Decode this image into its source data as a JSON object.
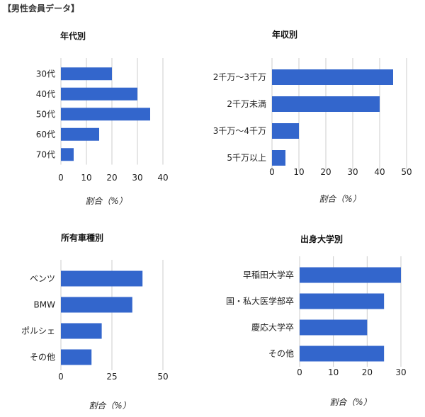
{
  "header": {
    "title": "【男性会員データ】"
  },
  "chart_data": [
    {
      "type": "bar",
      "title": "年代別",
      "categories": [
        "30代",
        "40代",
        "50代",
        "60代",
        "70代"
      ],
      "values": [
        20,
        30,
        35,
        15,
        5
      ],
      "xlabel": "割合（%）",
      "xlim": [
        0,
        40
      ],
      "ticks": [
        0,
        10,
        20,
        30,
        40
      ],
      "grid": true,
      "orientation": "horizontal"
    },
    {
      "type": "bar",
      "title": "年収別",
      "categories": [
        "2千万～3千万",
        "2千万未満",
        "3千万～4千万",
        "5千万以上"
      ],
      "values": [
        45,
        40,
        10,
        5
      ],
      "xlabel": "割合（%）",
      "xlim": [
        0,
        50
      ],
      "ticks": [
        0,
        10,
        20,
        30,
        40,
        50
      ],
      "grid": true,
      "orientation": "horizontal"
    },
    {
      "type": "bar",
      "title": "所有車種別",
      "categories": [
        "ベンツ",
        "BMW",
        "ポルシェ",
        "その他"
      ],
      "values": [
        40,
        35,
        20,
        15
      ],
      "xlabel": "割合（%）",
      "xlim": [
        0,
        50
      ],
      "ticks": [
        0,
        25,
        50
      ],
      "grid": true,
      "orientation": "horizontal"
    },
    {
      "type": "bar",
      "title": "出身大学別",
      "categories": [
        "早稲田大学卒",
        "国・私大医学部卒",
        "慶応大学卒",
        "その他"
      ],
      "values": [
        30,
        25,
        20,
        25
      ],
      "xlabel": "割合（%）",
      "xlim": [
        0,
        30
      ],
      "ticks": [
        0,
        10,
        20,
        30
      ],
      "grid": true,
      "orientation": "horizontal"
    }
  ]
}
